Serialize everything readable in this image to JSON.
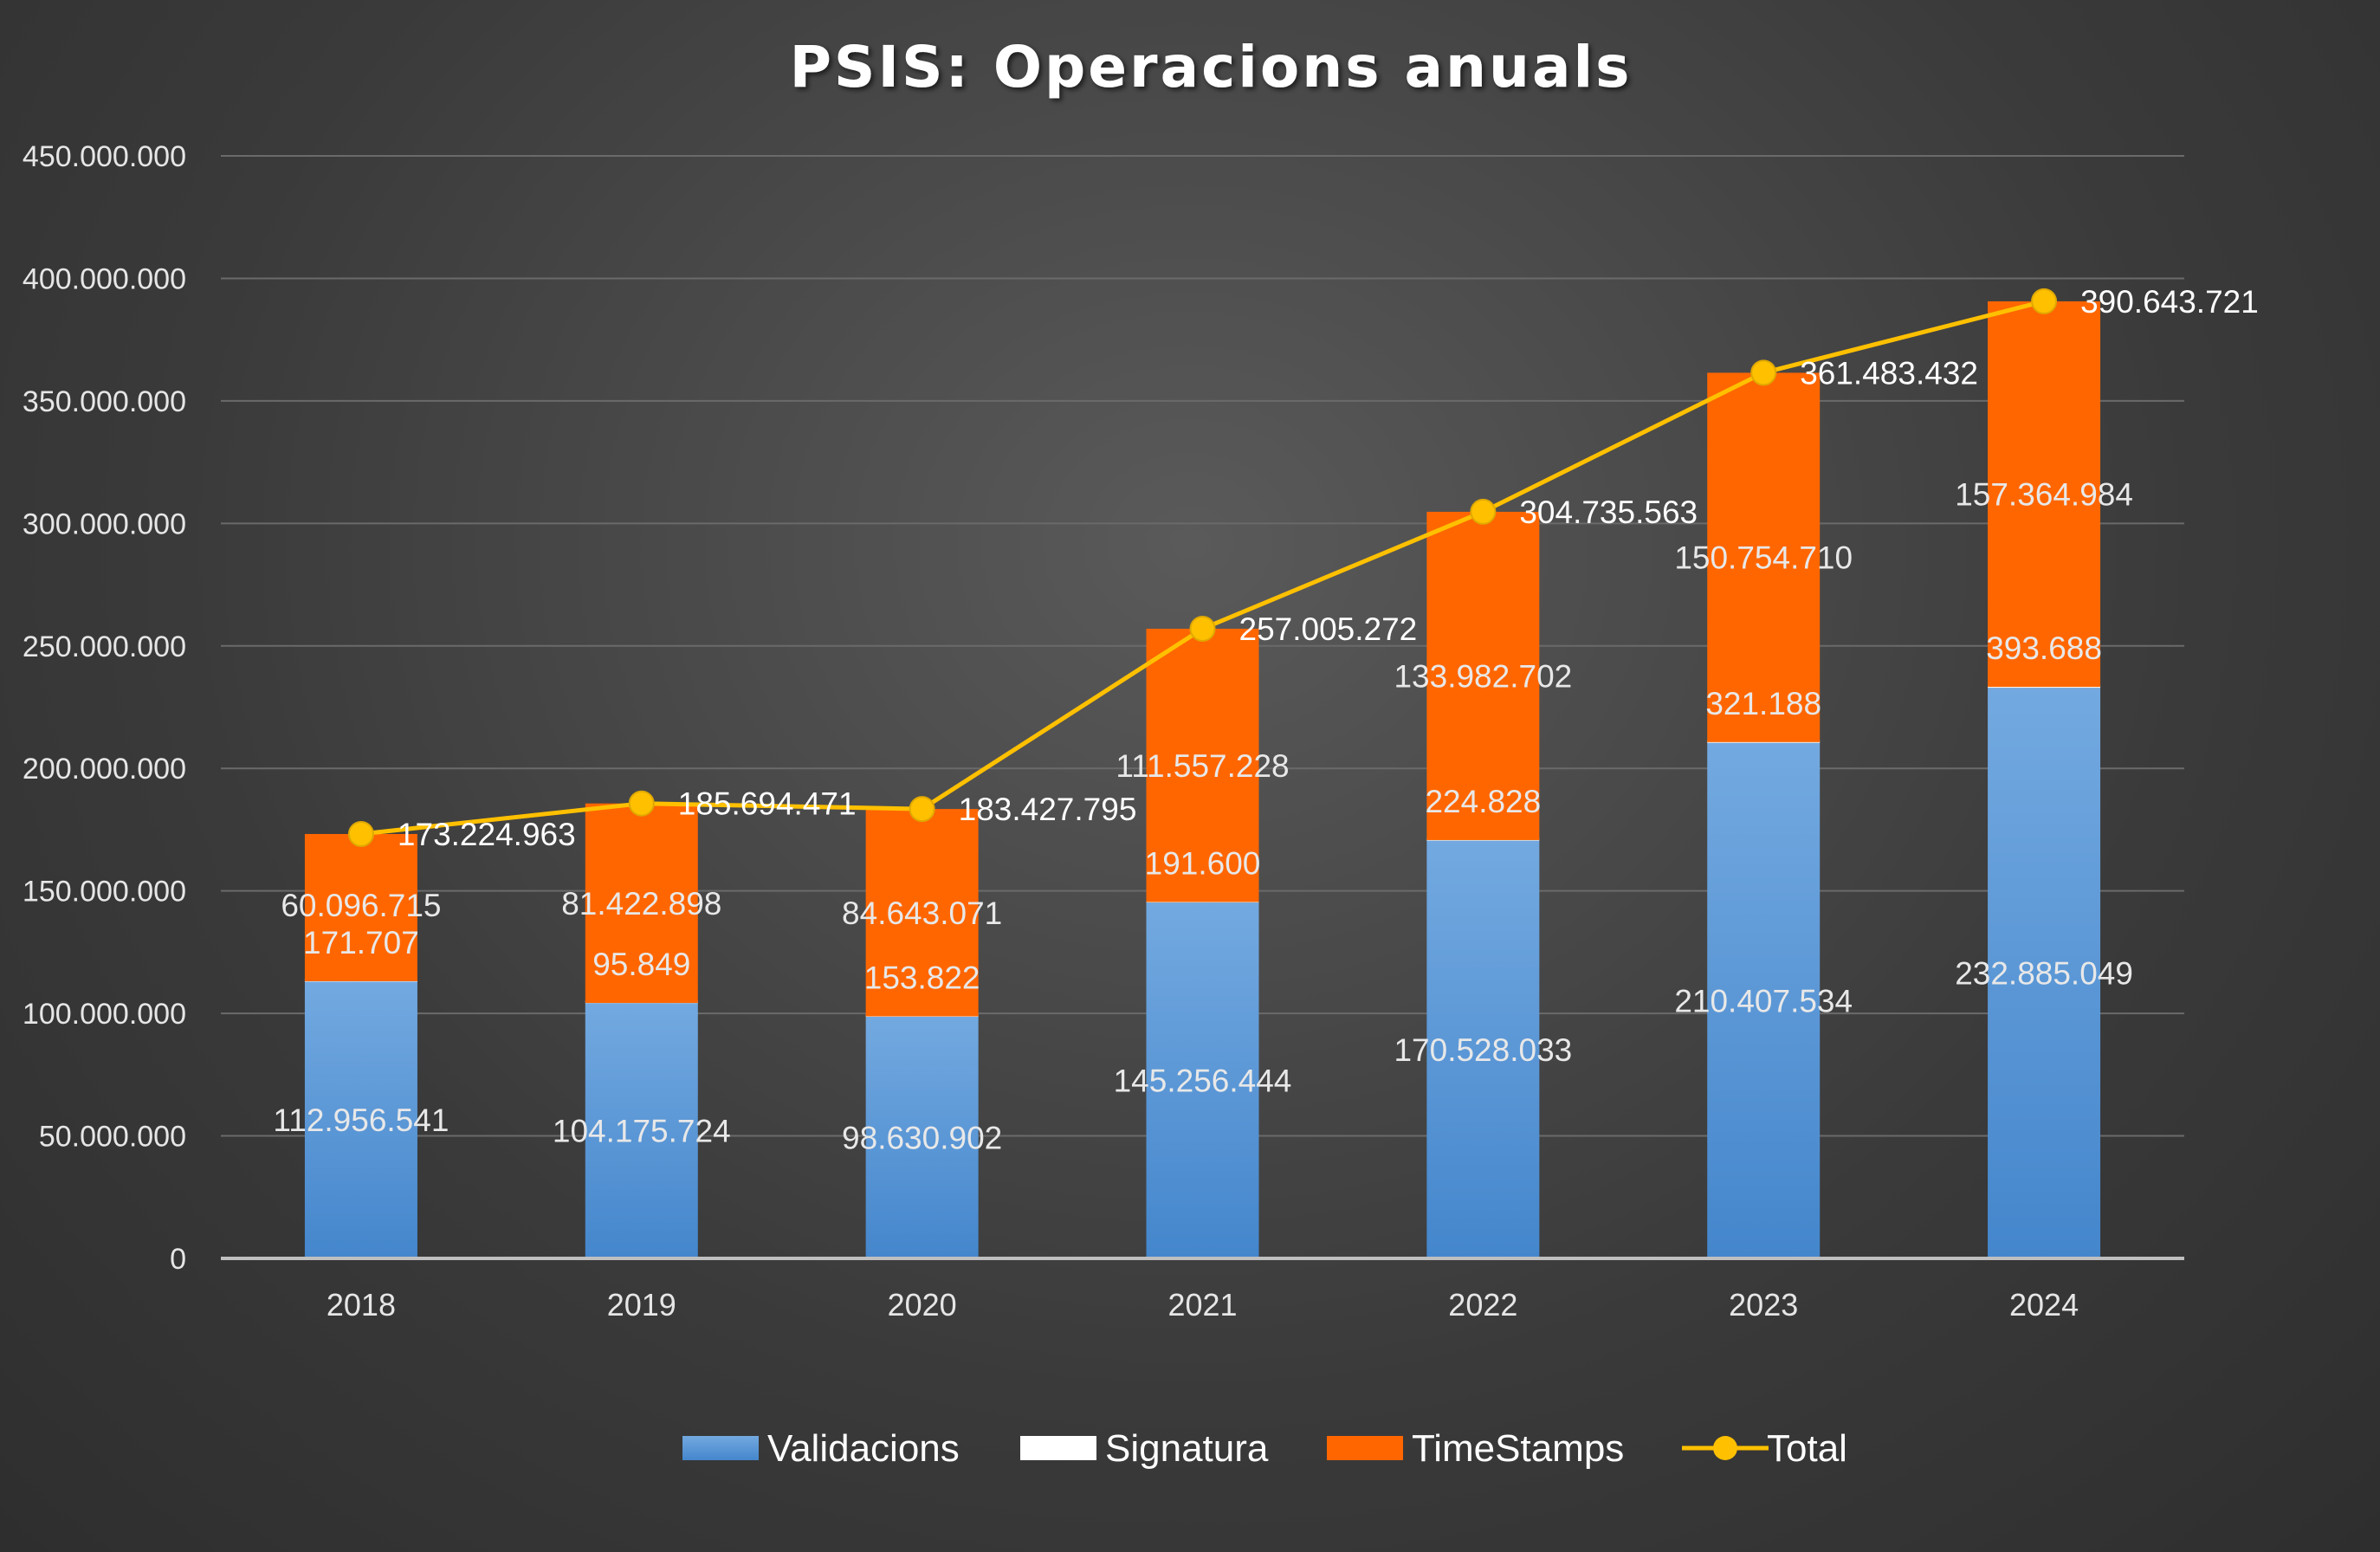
{
  "chart_data": {
    "type": "bar",
    "stacked": true,
    "title": "PSIS: Operacions anuals",
    "categories": [
      "2018",
      "2019",
      "2020",
      "2021",
      "2022",
      "2023",
      "2024"
    ],
    "ylim": [
      0,
      450000000
    ],
    "yticks": [
      {
        "value": 0,
        "label": "0"
      },
      {
        "value": 50000000,
        "label": "50.000.000"
      },
      {
        "value": 100000000,
        "label": "100.000.000"
      },
      {
        "value": 150000000,
        "label": "150.000.000"
      },
      {
        "value": 200000000,
        "label": "200.000.000"
      },
      {
        "value": 250000000,
        "label": "250.000.000"
      },
      {
        "value": 300000000,
        "label": "300.000.000"
      },
      {
        "value": 350000000,
        "label": "350.000.000"
      },
      {
        "value": 400000000,
        "label": "400.000.000"
      },
      {
        "value": 450000000,
        "label": "450.000.000"
      }
    ],
    "grid": true,
    "legend_position": "bottom",
    "series": [
      {
        "name": "Validacions",
        "kind": "bar",
        "color": "#5b9bd5",
        "values": [
          112956541,
          104175724,
          98630902,
          145256444,
          170528033,
          210407534,
          232885049
        ],
        "labels": [
          "112.956.541",
          "104.175.724",
          "98.630.902",
          "145.256.444",
          "170.528.033",
          "210.407.534",
          "232.885.049"
        ]
      },
      {
        "name": "Signatura",
        "kind": "bar",
        "color": "#ffffff",
        "values": [
          171707,
          95849,
          153822,
          191600,
          224828,
          321188,
          393688
        ],
        "labels": [
          "171.707",
          "95.849",
          "153.822",
          "191.600",
          "224.828",
          "321.188",
          "393.688"
        ]
      },
      {
        "name": "TimeStamps",
        "kind": "bar",
        "color": "#ff6600",
        "values": [
          60096715,
          81422898,
          84643071,
          111557228,
          133982702,
          150754710,
          157364984
        ],
        "labels": [
          "60.096.715",
          "81.422.898",
          "84.643.071",
          "111.557.228",
          "133.982.702",
          "150.754.710",
          "157.364.984"
        ]
      },
      {
        "name": "Total",
        "kind": "line",
        "color": "#ffc000",
        "values": [
          173224963,
          185694471,
          183427795,
          257005272,
          304735563,
          361483432,
          390643721
        ],
        "labels": [
          "173.224.963",
          "185.694.471",
          "183.427.795",
          "257.005.272",
          "304.735.563",
          "361.483.432",
          "390.643.721"
        ]
      }
    ]
  }
}
